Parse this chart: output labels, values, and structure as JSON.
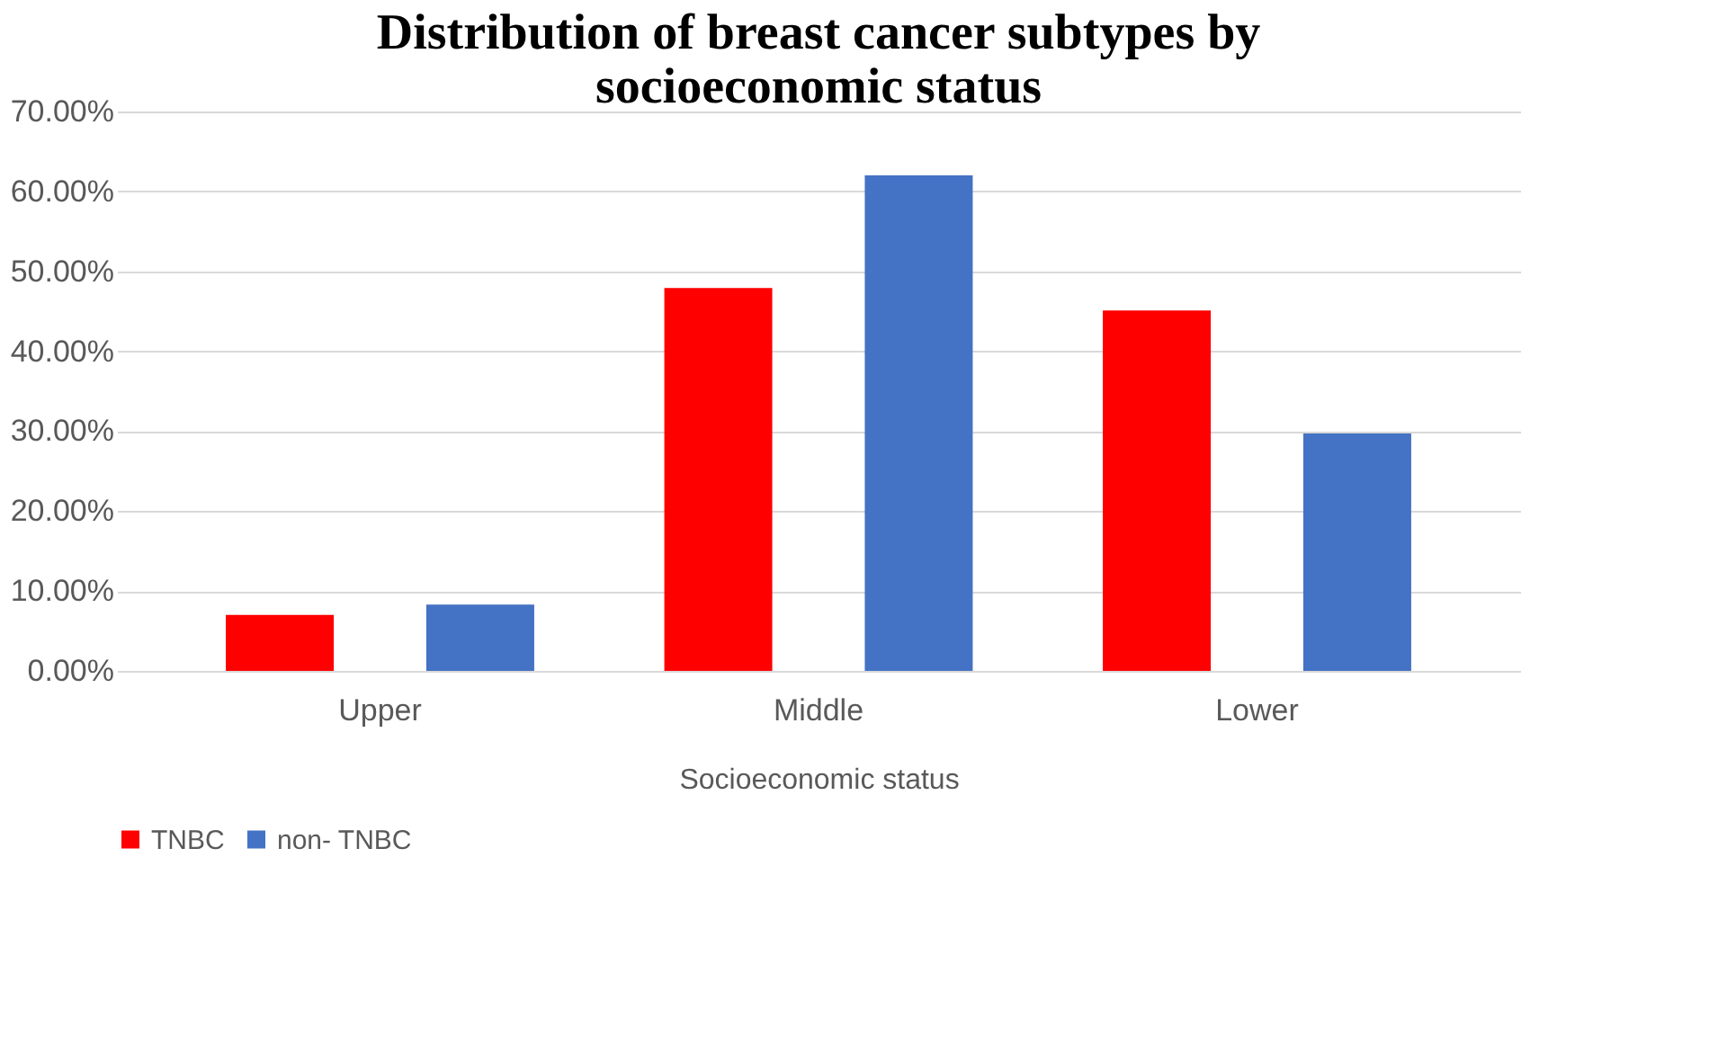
{
  "chart_data": {
    "type": "bar",
    "title": "Distribution of breast cancer subtypes by socioeconomic status",
    "xlabel": "Socioeconomic  status",
    "categories": [
      "Upper",
      "Middle",
      "Lower"
    ],
    "series": [
      {
        "name": "TNBC",
        "color": "#ff0000",
        "values": [
          7.0,
          47.9,
          45.1
        ]
      },
      {
        "name": "non-  TNBC",
        "color": "#4472c4",
        "values": [
          8.3,
          62.0,
          29.7
        ]
      }
    ],
    "ylim": [
      0,
      70
    ],
    "yticks": [
      {
        "value": 0,
        "label": "0.00%"
      },
      {
        "value": 10,
        "label": "10.00%"
      },
      {
        "value": 20,
        "label": "20.00%"
      },
      {
        "value": 30,
        "label": "30.00%"
      },
      {
        "value": 40,
        "label": "40.00%"
      },
      {
        "value": 50,
        "label": "50.00%"
      },
      {
        "value": 60,
        "label": "60.00%"
      },
      {
        "value": 70,
        "label": "70.00%"
      }
    ],
    "grid": "y",
    "legend": "bottom"
  }
}
